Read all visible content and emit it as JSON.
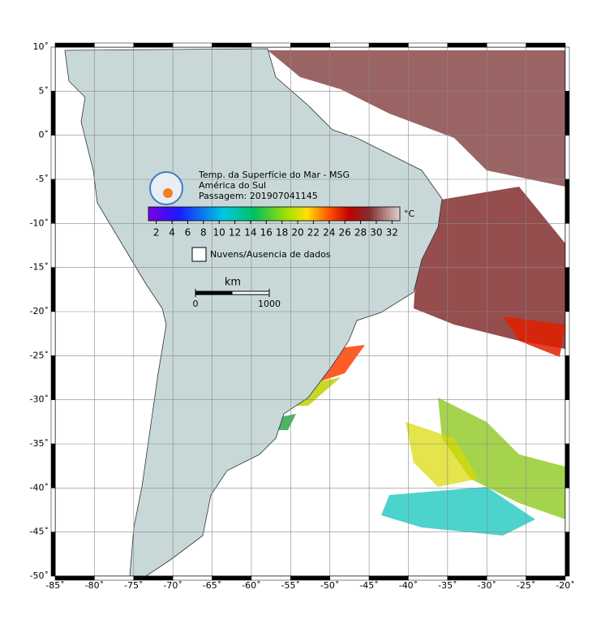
{
  "map": {
    "title": "Temp. da Superfície do Mar - MSG",
    "region": "América do Sul",
    "pass": "Passagem: 201907041145",
    "xlim": [
      -85,
      -20
    ],
    "ylim": [
      -50,
      10
    ],
    "xticks": [
      {
        "value": -85,
        "label": "-85˚"
      },
      {
        "value": -80,
        "label": "-80˚"
      },
      {
        "value": -75,
        "label": "-75˚"
      },
      {
        "value": -70,
        "label": "-70˚"
      },
      {
        "value": -65,
        "label": "-65˚"
      },
      {
        "value": -60,
        "label": "-60˚"
      },
      {
        "value": -55,
        "label": "-55˚"
      },
      {
        "value": -50,
        "label": "-50˚"
      },
      {
        "value": -45,
        "label": "-45˚"
      },
      {
        "value": -40,
        "label": "-40˚"
      },
      {
        "value": -35,
        "label": "-35˚"
      },
      {
        "value": -30,
        "label": "-30˚"
      },
      {
        "value": -25,
        "label": "-25˚"
      },
      {
        "value": -20,
        "label": "-20˚"
      }
    ],
    "yticks": [
      {
        "value": 10,
        "label": "10˚"
      },
      {
        "value": 5,
        "label": "5˚"
      },
      {
        "value": 0,
        "label": "0˚"
      },
      {
        "value": -5,
        "label": "-5˚"
      },
      {
        "value": -10,
        "label": "-10˚"
      },
      {
        "value": -15,
        "label": "-15˚"
      },
      {
        "value": -20,
        "label": "-20˚"
      },
      {
        "value": -25,
        "label": "-25˚"
      },
      {
        "value": -30,
        "label": "-30˚"
      },
      {
        "value": -35,
        "label": "-35˚"
      },
      {
        "value": -40,
        "label": "-40˚"
      },
      {
        "value": -45,
        "label": "-45˚"
      },
      {
        "value": -50,
        "label": "-50˚"
      }
    ],
    "colorbar": {
      "unit": "°C",
      "clim": [
        1,
        33
      ],
      "ticks": [
        2,
        4,
        6,
        8,
        10,
        12,
        14,
        16,
        18,
        20,
        22,
        24,
        26,
        28,
        30,
        32
      ]
    },
    "legend": "Nuvens/Ausencia de dados",
    "scalebar": {
      "unit": "km",
      "ticks": [
        0,
        1000
      ]
    }
  }
}
